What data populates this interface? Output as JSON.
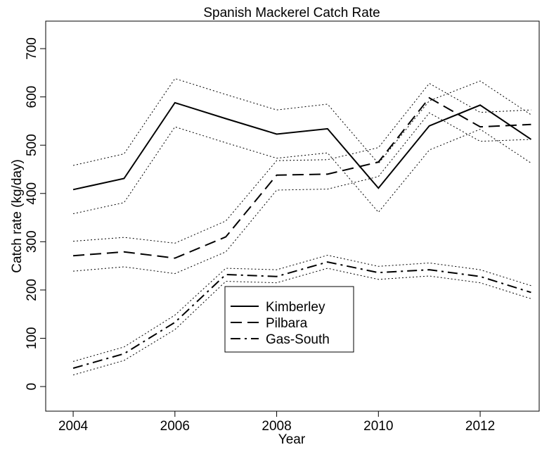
{
  "chart_data": {
    "type": "line",
    "title": "Spanish Mackerel Catch Rate",
    "xlabel": "Year",
    "ylabel": "Catch rate (kg/day)",
    "x": [
      2004,
      2005,
      2006,
      2007,
      2008,
      2009,
      2010,
      2011,
      2012,
      2013
    ],
    "series": [
      {
        "name": "Kimberley",
        "color": "#000000",
        "dash": "solid",
        "values": [
          408,
          431,
          588,
          555,
          523,
          534,
          411,
          540,
          583,
          512
        ],
        "upper": [
          458,
          482,
          638,
          605,
          573,
          585,
          462,
          592,
          633,
          563
        ],
        "lower": [
          358,
          381,
          538,
          505,
          473,
          484,
          361,
          490,
          533,
          463
        ]
      },
      {
        "name": "Pilbara",
        "color": "#000000",
        "dash": "dashed",
        "values": [
          271,
          279,
          266,
          310,
          438,
          440,
          465,
          598,
          538,
          543
        ],
        "upper": [
          301,
          309,
          297,
          343,
          468,
          470,
          495,
          628,
          568,
          573
        ],
        "lower": [
          239,
          248,
          234,
          279,
          407,
          409,
          435,
          567,
          508,
          512
        ]
      },
      {
        "name": "Gas-South",
        "color": "#000000",
        "dash": "dotdash",
        "values": [
          38,
          68,
          133,
          232,
          228,
          258,
          236,
          242,
          228,
          195
        ],
        "upper": [
          52,
          82,
          148,
          245,
          242,
          272,
          249,
          256,
          242,
          209
        ],
        "lower": [
          24,
          54,
          118,
          218,
          215,
          245,
          222,
          229,
          215,
          182
        ]
      }
    ],
    "xlim": [
      2003.46,
      2013.16
    ],
    "ylim": [
      -51,
      757
    ],
    "xticks": [
      2004,
      2006,
      2008,
      2010,
      2012
    ],
    "yticks": [
      0,
      100,
      200,
      300,
      400,
      500,
      600,
      700
    ],
    "legend": "bottom-center"
  }
}
